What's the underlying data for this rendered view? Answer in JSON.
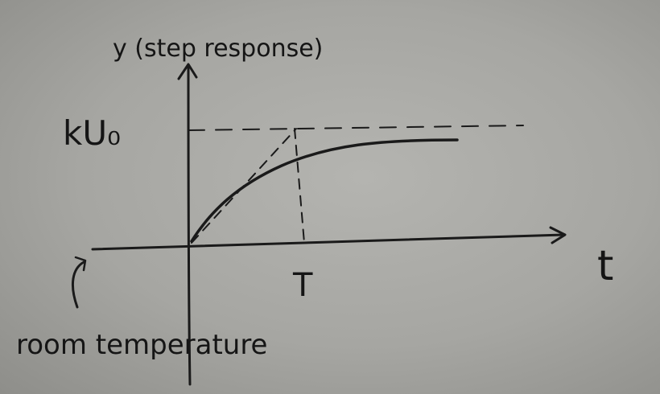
{
  "diagram": {
    "y_axis_label": "y (step response)",
    "x_axis_label": "t",
    "steady_state_label": "kU₀",
    "time_constant_label": "T",
    "origin_note": "room temperature"
  },
  "colors": {
    "paper": "#a8a8a4",
    "ink": "#1a1a1a"
  }
}
